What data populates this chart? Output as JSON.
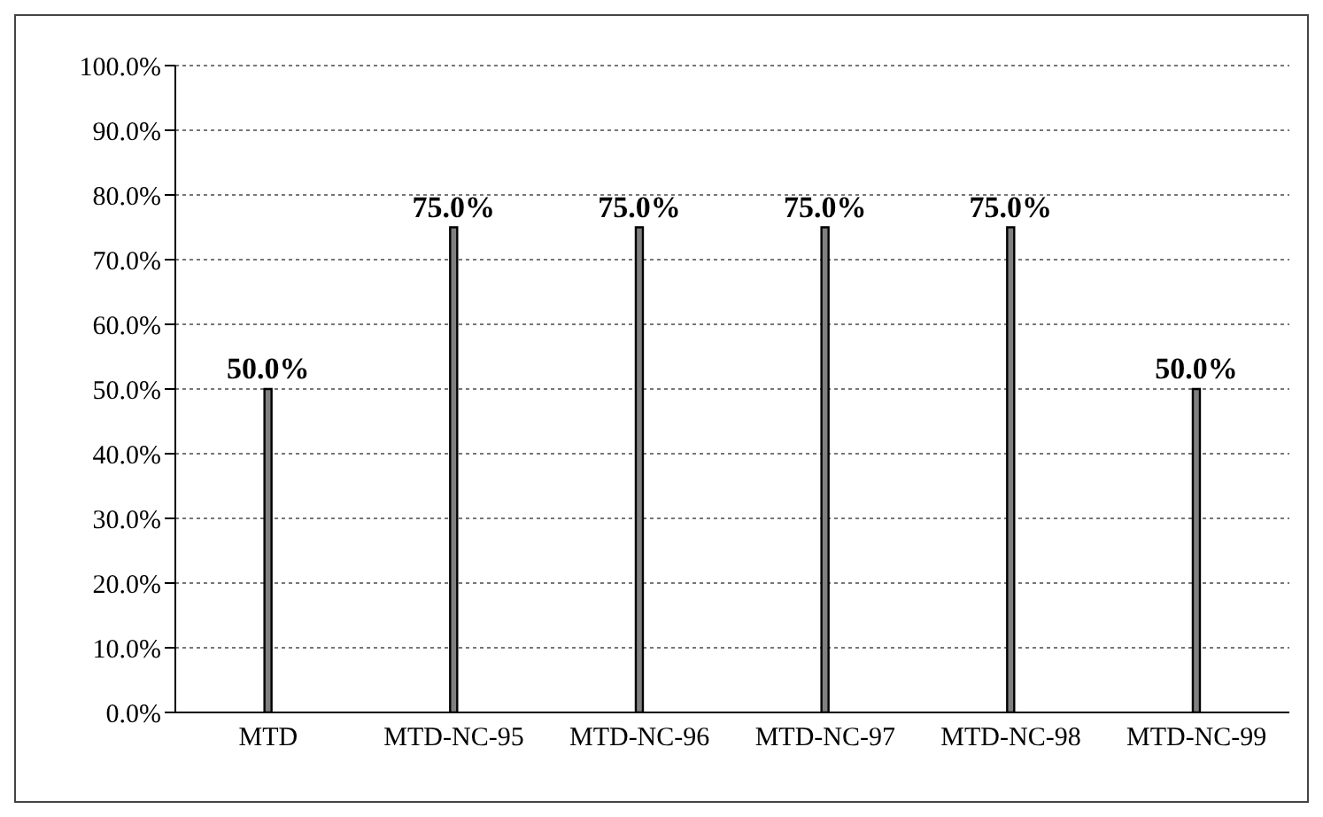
{
  "chart_data": {
    "type": "bar",
    "categories": [
      "MTD",
      "MTD-NC-95",
      "MTD-NC-96",
      "MTD-NC-97",
      "MTD-NC-98",
      "MTD-NC-99"
    ],
    "values": [
      50,
      75,
      75,
      75,
      75,
      50
    ],
    "color": "#808080",
    "value_labels": [
      "50.0%",
      "75.0%",
      "75.0%",
      "75.0%",
      "75.0%",
      "50.0%"
    ],
    "ylim": [
      0,
      100
    ],
    "yticks": [
      {
        "value": 0,
        "label": "0.0%"
      },
      {
        "value": 10,
        "label": "10.0%"
      },
      {
        "value": 20,
        "label": "20.0%"
      },
      {
        "value": 30,
        "label": "30.0%"
      },
      {
        "value": 40,
        "label": "40.0%"
      },
      {
        "value": 50,
        "label": "50.0%"
      },
      {
        "value": 60,
        "label": "60.0%"
      },
      {
        "value": 70,
        "label": "70.0%"
      },
      {
        "value": 80,
        "label": "80.0%"
      },
      {
        "value": 90,
        "label": "90.0%"
      },
      {
        "value": 100,
        "label": "100.0%"
      }
    ],
    "grid": "y",
    "legend": false
  }
}
